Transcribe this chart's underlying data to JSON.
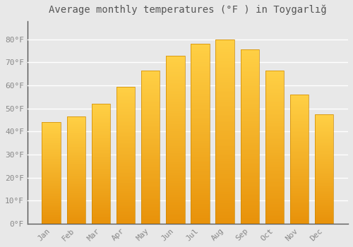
{
  "title": "Average monthly temperatures (°F ) in Toygarlığ",
  "months": [
    "Jan",
    "Feb",
    "Mar",
    "Apr",
    "May",
    "Jun",
    "Jul",
    "Aug",
    "Sep",
    "Oct",
    "Nov",
    "Dec"
  ],
  "values": [
    44,
    46.5,
    52,
    59.5,
    66.5,
    73,
    78,
    80,
    75.5,
    66.5,
    56,
    47.5
  ],
  "bar_color_bottom": "#E8920A",
  "bar_color_top": "#FFD045",
  "bar_color_mid": "#FFA500",
  "ylim": [
    0,
    88
  ],
  "yticks": [
    0,
    10,
    20,
    30,
    40,
    50,
    60,
    70,
    80
  ],
  "ytick_labels": [
    "0°F",
    "10°F",
    "20°F",
    "30°F",
    "40°F",
    "50°F",
    "60°F",
    "70°F",
    "80°F"
  ],
  "background_color": "#e8e8e8",
  "grid_color": "#ffffff",
  "spine_color": "#555555",
  "title_fontsize": 10,
  "tick_fontsize": 8,
  "tick_color": "#888888",
  "title_color": "#555555"
}
